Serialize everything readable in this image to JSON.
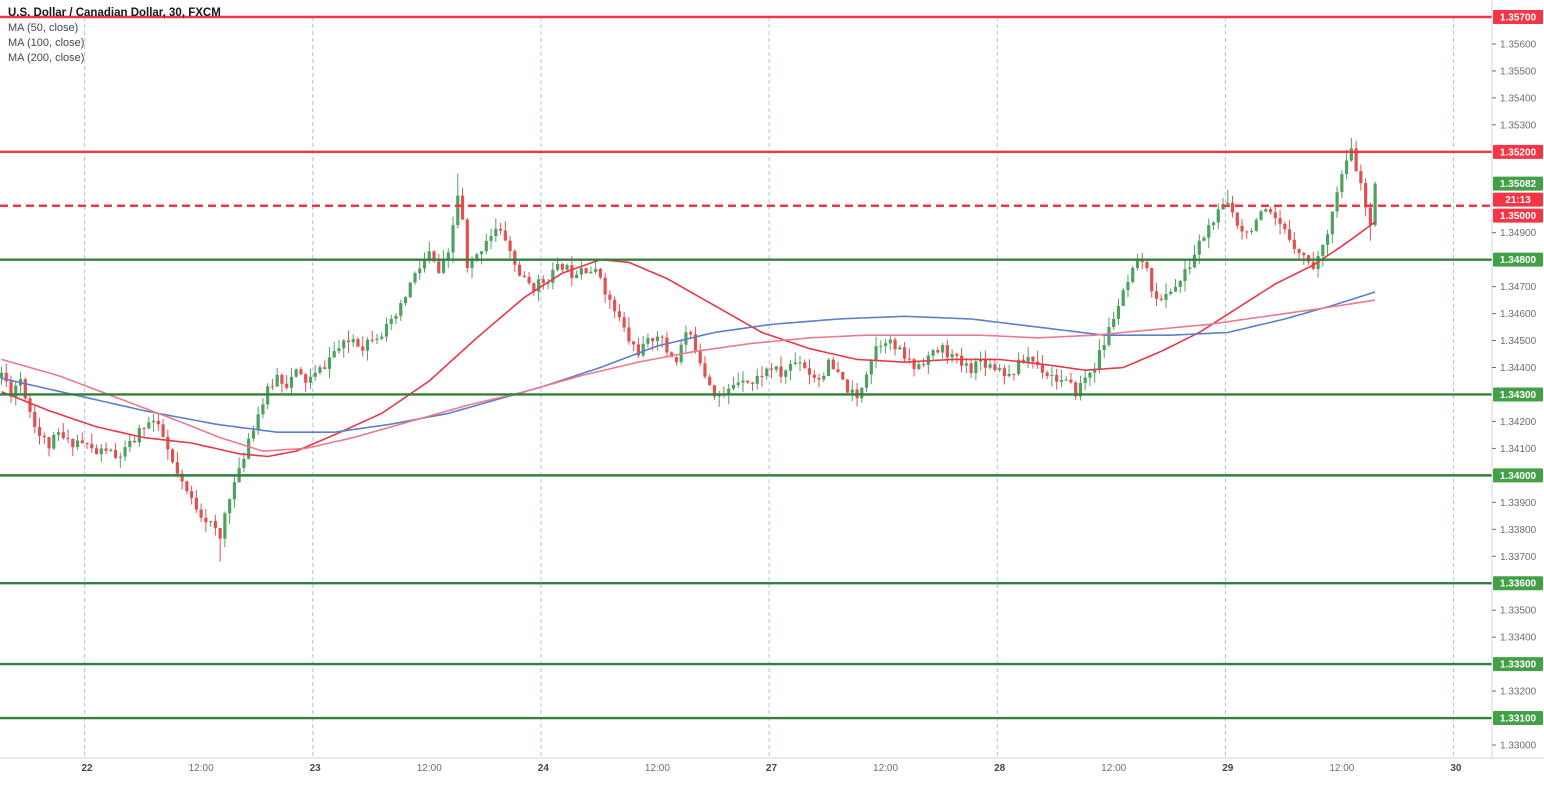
{
  "header": {
    "title": "U.S. Dollar / Canadian Dollar, 30, FXCM"
  },
  "legend": {
    "items": [
      "MA (50, close)",
      "MA (100, close)",
      "MA (200, close)"
    ]
  },
  "colors": {
    "up": "#4fa162",
    "down": "#e05252",
    "ma50": "#e53948",
    "ma100": "#5b80c9",
    "ma200": "#ec7a8e",
    "level_red": "#f23645",
    "level_green": "#33803c",
    "badge_red": "#f23645",
    "badge_green": "#43a047",
    "countdown_bg": "#f23645",
    "session_line": "#aac4e5",
    "axis_text": "#6a6d78",
    "day_text": "#434651",
    "axis_border": "#d1d4dc"
  },
  "chart_data": {
    "type": "candlestick",
    "symbol": "U.S. Dollar / Canadian Dollar",
    "timeframe": "30",
    "exchange": "FXCM",
    "current_price": "1.35082",
    "countdown": "21:13",
    "axis": {
      "top_price": 1.357,
      "bottom_price": 1.33,
      "price_ticks": [
        "1.35600",
        "1.35500",
        "1.35400",
        "1.35300",
        "1.34900",
        "1.34700",
        "1.34600",
        "1.34500",
        "1.34400",
        "1.34200",
        "1.34100",
        "1.33900",
        "1.33800",
        "1.33700",
        "1.33500",
        "1.33400",
        "1.33200",
        "1.33000"
      ],
      "time_labels": [
        {
          "t": "22",
          "i": 18,
          "d": 1
        },
        {
          "t": "12:00",
          "i": 42,
          "d": 0
        },
        {
          "t": "23",
          "i": 66,
          "d": 1
        },
        {
          "t": "12:00",
          "i": 90,
          "d": 0
        },
        {
          "t": "24",
          "i": 114,
          "d": 1
        },
        {
          "t": "12:00",
          "i": 138,
          "d": 0
        },
        {
          "t": "27",
          "i": 162,
          "d": 1
        },
        {
          "t": "12:00",
          "i": 186,
          "d": 0
        },
        {
          "t": "28",
          "i": 210,
          "d": 1
        },
        {
          "t": "12:00",
          "i": 234,
          "d": 0
        },
        {
          "t": "29",
          "i": 258,
          "d": 1
        },
        {
          "t": "12:00",
          "i": 282,
          "d": 0
        },
        {
          "t": "30",
          "i": 306,
          "d": 1
        }
      ],
      "session_breaks": [
        18,
        66,
        114,
        162,
        210,
        258,
        306
      ]
    },
    "levels": [
      {
        "price": 1.357,
        "label": "1.35700",
        "color": "red",
        "style": "solid"
      },
      {
        "price": 1.352,
        "label": "1.35200",
        "color": "red",
        "style": "solid"
      },
      {
        "price": 1.35,
        "label": "1.35000",
        "color": "red",
        "style": "dashed"
      },
      {
        "price": 1.348,
        "label": "1.34800",
        "color": "green",
        "style": "solid"
      },
      {
        "price": 1.343,
        "label": "1.34300",
        "color": "green",
        "style": "solid"
      },
      {
        "price": 1.34,
        "label": "1.34000",
        "color": "green",
        "style": "solid"
      },
      {
        "price": 1.336,
        "label": "1.33600",
        "color": "green",
        "style": "solid"
      },
      {
        "price": 1.333,
        "label": "1.33300",
        "color": "green",
        "style": "solid"
      },
      {
        "price": 1.331,
        "label": "1.33100",
        "color": "green",
        "style": "solid"
      }
    ],
    "candle_count": 290,
    "close_path": [
      [
        0,
        1.3438
      ],
      [
        2,
        1.3431
      ],
      [
        4,
        1.3436
      ],
      [
        6,
        1.3424
      ],
      [
        8,
        1.3415
      ],
      [
        10,
        1.3411
      ],
      [
        12,
        1.3415
      ],
      [
        14,
        1.3412
      ],
      [
        16,
        1.3413
      ],
      [
        18,
        1.3411
      ],
      [
        20,
        1.3408
      ],
      [
        22,
        1.341
      ],
      [
        24,
        1.3406
      ],
      [
        26,
        1.3409
      ],
      [
        28,
        1.3413
      ],
      [
        30,
        1.3419
      ],
      [
        32,
        1.342
      ],
      [
        34,
        1.3414
      ],
      [
        36,
        1.3404
      ],
      [
        38,
        1.3396
      ],
      [
        40,
        1.3391
      ],
      [
        42,
        1.3386
      ],
      [
        44,
        1.3382
      ],
      [
        46,
        1.3376
      ],
      [
        47,
        1.3386
      ],
      [
        48,
        1.3393
      ],
      [
        50,
        1.3401
      ],
      [
        52,
        1.3414
      ],
      [
        54,
        1.3423
      ],
      [
        56,
        1.3431
      ],
      [
        58,
        1.3437
      ],
      [
        60,
        1.3434
      ],
      [
        62,
        1.3438
      ],
      [
        64,
        1.3435
      ],
      [
        66,
        1.3437
      ],
      [
        68,
        1.3441
      ],
      [
        70,
        1.3446
      ],
      [
        72,
        1.3448
      ],
      [
        74,
        1.3451
      ],
      [
        76,
        1.3448
      ],
      [
        78,
        1.3452
      ],
      [
        80,
        1.3453
      ],
      [
        82,
        1.3456
      ],
      [
        84,
        1.3462
      ],
      [
        86,
        1.3471
      ],
      [
        88,
        1.3477
      ],
      [
        90,
        1.3482
      ],
      [
        92,
        1.3475
      ],
      [
        94,
        1.3481
      ],
      [
        96,
        1.3504
      ],
      [
        97,
        1.3494
      ],
      [
        98,
        1.3476
      ],
      [
        100,
        1.3481
      ],
      [
        102,
        1.3488
      ],
      [
        104,
        1.3491
      ],
      [
        106,
        1.3488
      ],
      [
        108,
        1.3478
      ],
      [
        110,
        1.3472
      ],
      [
        112,
        1.347
      ],
      [
        114,
        1.3472
      ],
      [
        116,
        1.3475
      ],
      [
        118,
        1.3478
      ],
      [
        120,
        1.3475
      ],
      [
        122,
        1.3478
      ],
      [
        124,
        1.3476
      ],
      [
        126,
        1.3474
      ],
      [
        128,
        1.3464
      ],
      [
        130,
        1.3458
      ],
      [
        132,
        1.345
      ],
      [
        134,
        1.3446
      ],
      [
        136,
        1.3449
      ],
      [
        138,
        1.3453
      ],
      [
        140,
        1.3446
      ],
      [
        142,
        1.3443
      ],
      [
        144,
        1.3453
      ],
      [
        146,
        1.3448
      ],
      [
        148,
        1.3438
      ],
      [
        150,
        1.3431
      ],
      [
        152,
        1.3429
      ],
      [
        154,
        1.3434
      ],
      [
        156,
        1.3437
      ],
      [
        158,
        1.3434
      ],
      [
        160,
        1.3438
      ],
      [
        162,
        1.344
      ],
      [
        164,
        1.3437
      ],
      [
        166,
        1.3441
      ],
      [
        168,
        1.3443
      ],
      [
        170,
        1.3438
      ],
      [
        172,
        1.3436
      ],
      [
        174,
        1.3441
      ],
      [
        176,
        1.3437
      ],
      [
        178,
        1.3432
      ],
      [
        180,
        1.3428
      ],
      [
        182,
        1.3439
      ],
      [
        184,
        1.3448
      ],
      [
        186,
        1.3451
      ],
      [
        188,
        1.3447
      ],
      [
        190,
        1.3444
      ],
      [
        192,
        1.344
      ],
      [
        194,
        1.3443
      ],
      [
        196,
        1.3445
      ],
      [
        198,
        1.3447
      ],
      [
        200,
        1.3444
      ],
      [
        202,
        1.3441
      ],
      [
        204,
        1.344
      ],
      [
        206,
        1.3443
      ],
      [
        208,
        1.3441
      ],
      [
        210,
        1.344
      ],
      [
        212,
        1.3437
      ],
      [
        214,
        1.3441
      ],
      [
        216,
        1.3444
      ],
      [
        218,
        1.3441
      ],
      [
        220,
        1.3438
      ],
      [
        222,
        1.3436
      ],
      [
        224,
        1.3434
      ],
      [
        226,
        1.3431
      ],
      [
        228,
        1.3436
      ],
      [
        230,
        1.3441
      ],
      [
        232,
        1.3449
      ],
      [
        234,
        1.3459
      ],
      [
        236,
        1.3467
      ],
      [
        238,
        1.3475
      ],
      [
        240,
        1.348
      ],
      [
        242,
        1.347
      ],
      [
        244,
        1.3464
      ],
      [
        246,
        1.3469
      ],
      [
        248,
        1.3472
      ],
      [
        250,
        1.3478
      ],
      [
        252,
        1.3486
      ],
      [
        254,
        1.3492
      ],
      [
        256,
        1.3497
      ],
      [
        258,
        1.3501
      ],
      [
        260,
        1.3494
      ],
      [
        262,
        1.349
      ],
      [
        264,
        1.3495
      ],
      [
        266,
        1.3497
      ],
      [
        268,
        1.3494
      ],
      [
        270,
        1.349
      ],
      [
        272,
        1.3486
      ],
      [
        274,
        1.3481
      ],
      [
        276,
        1.3478
      ],
      [
        278,
        1.3484
      ],
      [
        280,
        1.3499
      ],
      [
        282,
        1.3511
      ],
      [
        284,
        1.352
      ],
      [
        285,
        1.3514
      ],
      [
        286,
        1.3507
      ],
      [
        287,
        1.3499
      ],
      [
        288,
        1.3491
      ],
      [
        289,
        1.35082
      ]
    ],
    "wick_overrides": [
      {
        "i": 46,
        "l": 1.3368
      },
      {
        "i": 96,
        "h": 1.3512
      },
      {
        "i": 258,
        "h": 1.3506
      },
      {
        "i": 284,
        "h": 1.3523
      },
      {
        "i": 288,
        "l": 1.3487
      },
      {
        "i": 289,
        "h": 1.3509
      }
    ],
    "ma_series": [
      {
        "name": "MA (50, close)",
        "color_key": "ma50",
        "path": [
          [
            0,
            1.3431
          ],
          [
            10,
            1.3424
          ],
          [
            20,
            1.3418
          ],
          [
            30,
            1.3414
          ],
          [
            40,
            1.3412
          ],
          [
            50,
            1.3408
          ],
          [
            56,
            1.3407
          ],
          [
            62,
            1.3409
          ],
          [
            70,
            1.3415
          ],
          [
            80,
            1.3423
          ],
          [
            90,
            1.3435
          ],
          [
            100,
            1.3451
          ],
          [
            110,
            1.3466
          ],
          [
            118,
            1.3475
          ],
          [
            126,
            1.348
          ],
          [
            132,
            1.3479
          ],
          [
            140,
            1.3473
          ],
          [
            150,
            1.3463
          ],
          [
            160,
            1.3453
          ],
          [
            170,
            1.3447
          ],
          [
            180,
            1.3443
          ],
          [
            190,
            1.3442
          ],
          [
            200,
            1.3443
          ],
          [
            210,
            1.3443
          ],
          [
            220,
            1.3441
          ],
          [
            228,
            1.3439
          ],
          [
            236,
            1.344
          ],
          [
            244,
            1.3446
          ],
          [
            252,
            1.3453
          ],
          [
            260,
            1.3462
          ],
          [
            268,
            1.3471
          ],
          [
            276,
            1.3478
          ],
          [
            282,
            1.3485
          ],
          [
            289,
            1.3494
          ]
        ]
      },
      {
        "name": "MA (100, close)",
        "color_key": "ma100",
        "path": [
          [
            0,
            1.3436
          ],
          [
            15,
            1.343
          ],
          [
            30,
            1.3424
          ],
          [
            45,
            1.3419
          ],
          [
            58,
            1.3416
          ],
          [
            70,
            1.3416
          ],
          [
            82,
            1.3419
          ],
          [
            94,
            1.3423
          ],
          [
            106,
            1.3429
          ],
          [
            114,
            1.3433
          ],
          [
            126,
            1.344
          ],
          [
            138,
            1.3448
          ],
          [
            150,
            1.3453
          ],
          [
            162,
            1.3456
          ],
          [
            176,
            1.3458
          ],
          [
            190,
            1.3459
          ],
          [
            204,
            1.3458
          ],
          [
            218,
            1.3455
          ],
          [
            232,
            1.3452
          ],
          [
            246,
            1.3452
          ],
          [
            258,
            1.3453
          ],
          [
            270,
            1.3458
          ],
          [
            280,
            1.3463
          ],
          [
            289,
            1.3468
          ]
        ]
      },
      {
        "name": "MA (200, close)",
        "color_key": "ma200",
        "path": [
          [
            0,
            1.3443
          ],
          [
            12,
            1.3437
          ],
          [
            24,
            1.3429
          ],
          [
            36,
            1.3421
          ],
          [
            46,
            1.3414
          ],
          [
            55,
            1.3409
          ],
          [
            64,
            1.341
          ],
          [
            74,
            1.3414
          ],
          [
            86,
            1.342
          ],
          [
            98,
            1.3426
          ],
          [
            110,
            1.3431
          ],
          [
            122,
            1.3437
          ],
          [
            134,
            1.3442
          ],
          [
            146,
            1.3446
          ],
          [
            158,
            1.3449
          ],
          [
            170,
            1.3451
          ],
          [
            182,
            1.3452
          ],
          [
            194,
            1.3452
          ],
          [
            206,
            1.3452
          ],
          [
            218,
            1.3451
          ],
          [
            230,
            1.3452
          ],
          [
            242,
            1.3454
          ],
          [
            254,
            1.3456
          ],
          [
            266,
            1.3459
          ],
          [
            278,
            1.3462
          ],
          [
            289,
            1.3465
          ]
        ]
      }
    ]
  }
}
